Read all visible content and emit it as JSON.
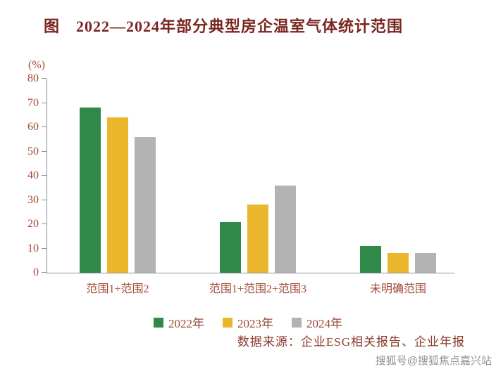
{
  "title": "图　2022—2024年部分典型房企温室气体统计范围",
  "source": "数据来源：企业ESG相关报告、企业年报",
  "watermark": "搜狐号@搜狐焦点嘉兴站",
  "chart_data": {
    "type": "bar",
    "title": "图　2022—2024年部分典型房企温室气体统计范围",
    "unit_label": "(%)",
    "xlabel": "",
    "ylabel": "(%)",
    "ylim": [
      0,
      80
    ],
    "yticks": [
      0,
      10,
      20,
      30,
      40,
      50,
      60,
      70,
      80
    ],
    "grid": false,
    "legend_position": "bottom",
    "categories": [
      "范围1+范围2",
      "范围1+范围2+范围3",
      "未明确范围"
    ],
    "series": [
      {
        "name": "2022年",
        "color": "#2f8a4a",
        "values": [
          68,
          21,
          11
        ]
      },
      {
        "name": "2023年",
        "color": "#e9b62c",
        "values": [
          64,
          28,
          8
        ]
      },
      {
        "name": "2024年",
        "color": "#b3b3b3",
        "values": [
          56,
          36,
          8
        ]
      }
    ]
  }
}
